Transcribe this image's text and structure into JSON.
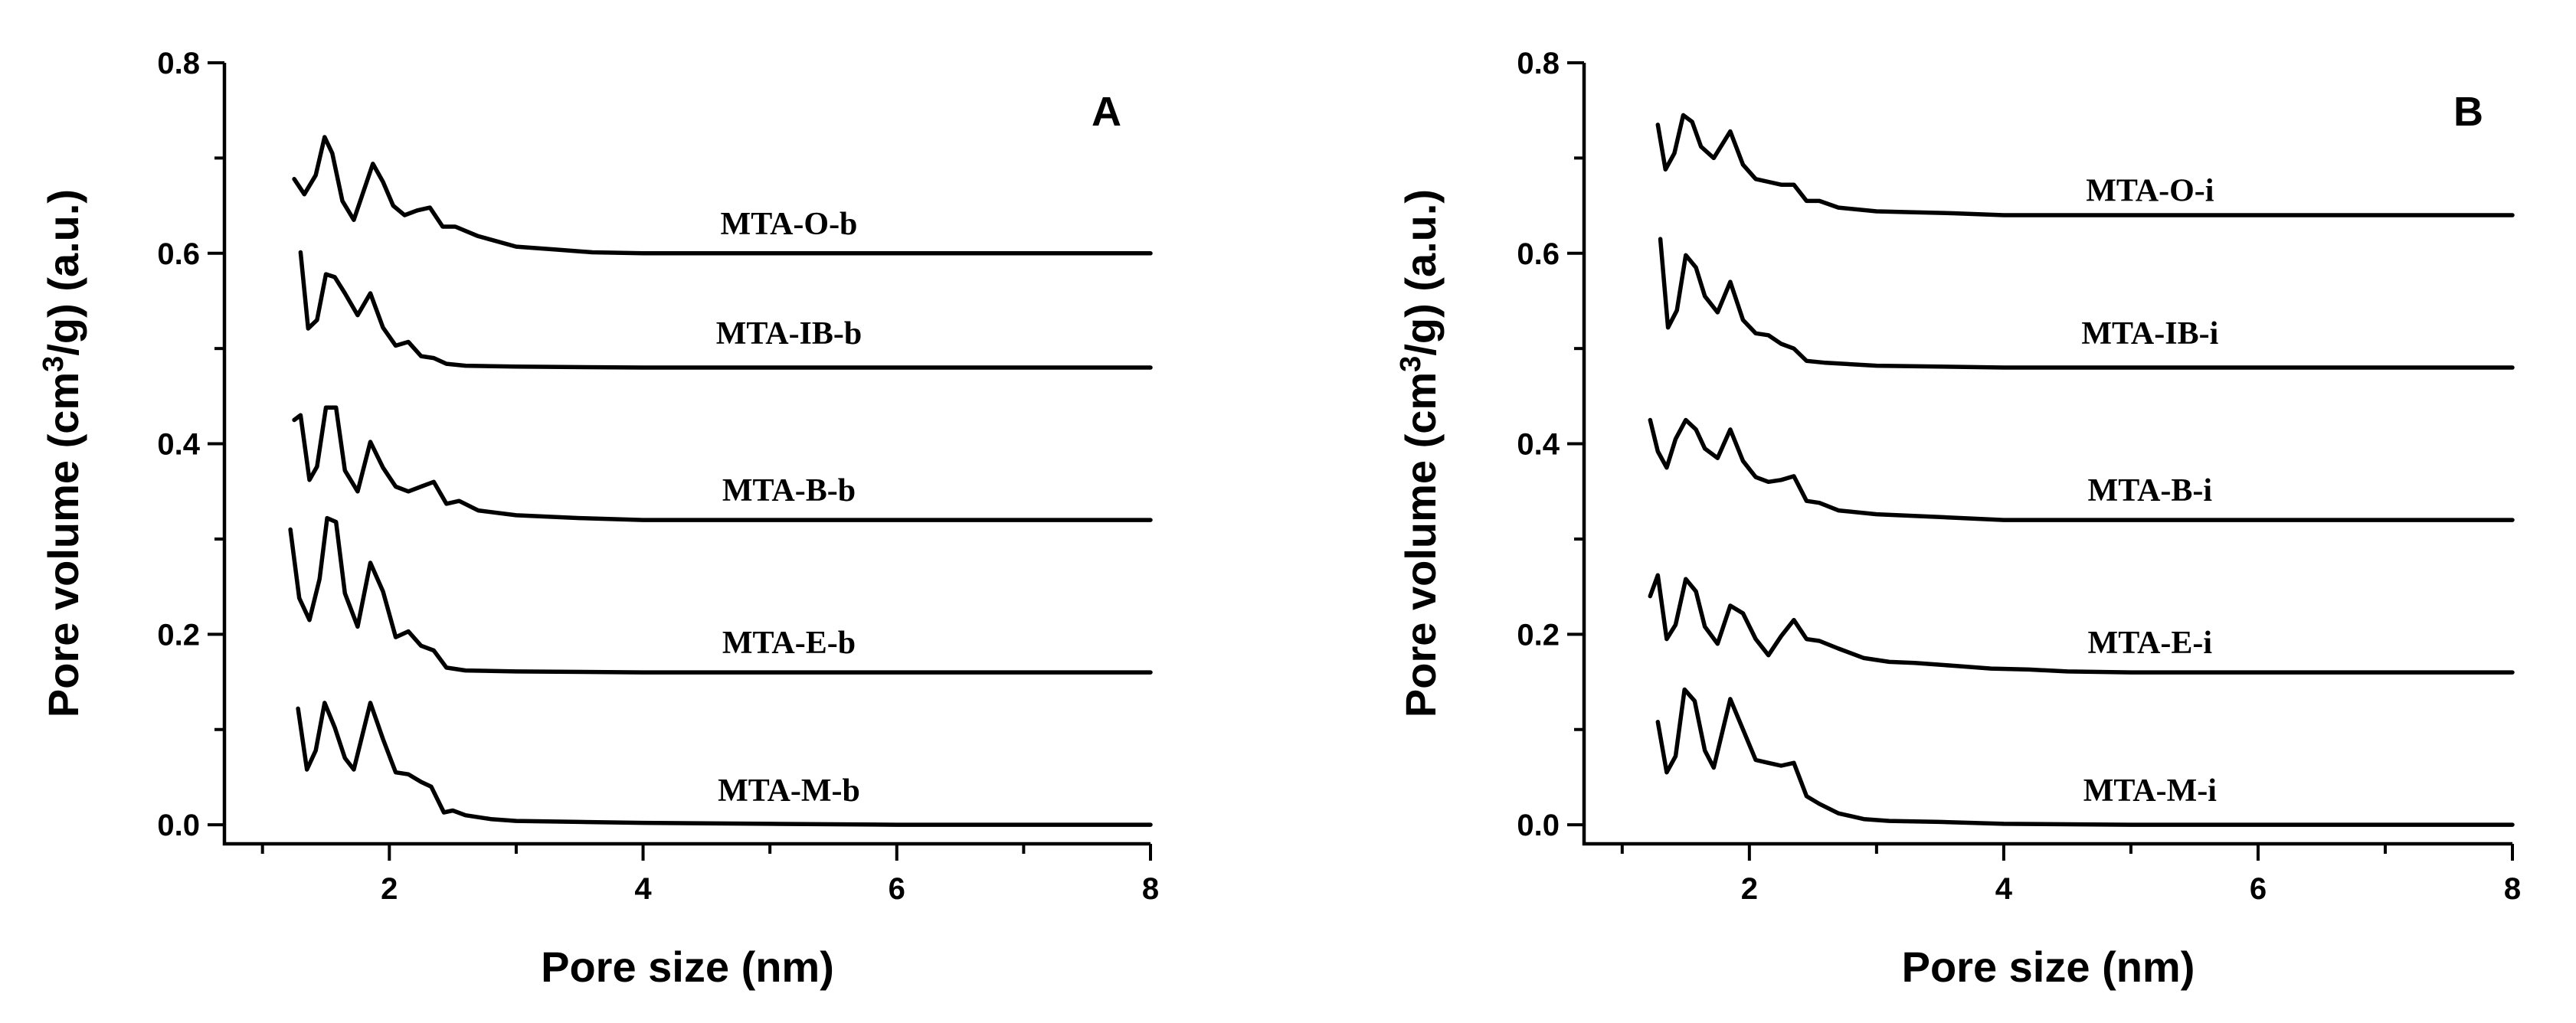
{
  "chart_data": [
    {
      "type": "line",
      "panel_label": "A",
      "xlabel": "Pore size (nm)",
      "ylabel": "Pore volume (cm³/g) (a.u.)",
      "ylabel_parts": {
        "pre": "Pore volume (cm",
        "sup": "3",
        "post": "/g) (a.u.)"
      },
      "xlim": [
        0.7,
        8
      ],
      "ylim": [
        -0.02,
        0.8
      ],
      "xticks": [
        2,
        4,
        6,
        8
      ],
      "xtick_labels": [
        "2",
        "4",
        "6",
        "8"
      ],
      "yticks": [
        0.0,
        0.2,
        0.4,
        0.6,
        0.8
      ],
      "ytick_labels": [
        "0.0",
        "0.2",
        "0.4",
        "0.6",
        "0.8"
      ],
      "grid": false,
      "legend": "none",
      "series": [
        {
          "name": "MTA-O-b",
          "label_at": {
            "x": 5.15,
            "y": 0.62
          },
          "x": [
            1.25,
            1.33,
            1.42,
            1.49,
            1.55,
            1.63,
            1.72,
            1.87,
            1.95,
            2.03,
            2.12,
            2.22,
            2.32,
            2.42,
            2.52,
            2.7,
            3.0,
            3.3,
            3.6,
            4.0,
            5.0,
            6.0,
            8.0
          ],
          "y": [
            0.678,
            0.662,
            0.682,
            0.722,
            0.705,
            0.655,
            0.635,
            0.694,
            0.675,
            0.65,
            0.64,
            0.645,
            0.648,
            0.628,
            0.628,
            0.618,
            0.607,
            0.604,
            0.601,
            0.6,
            0.6,
            0.6,
            0.6
          ]
        },
        {
          "name": "MTA-IB-b",
          "label_at": {
            "x": 5.15,
            "y": 0.505
          },
          "x": [
            1.3,
            1.36,
            1.43,
            1.5,
            1.57,
            1.65,
            1.75,
            1.85,
            1.95,
            2.05,
            2.15,
            2.25,
            2.35,
            2.45,
            2.6,
            3.0,
            4.0,
            5.0,
            6.0,
            8.0
          ],
          "y": [
            0.601,
            0.521,
            0.53,
            0.578,
            0.575,
            0.558,
            0.535,
            0.558,
            0.522,
            0.503,
            0.507,
            0.492,
            0.49,
            0.484,
            0.482,
            0.481,
            0.48,
            0.48,
            0.48,
            0.48
          ]
        },
        {
          "name": "MTA-B-b",
          "label_at": {
            "x": 5.15,
            "y": 0.34
          },
          "x": [
            1.25,
            1.3,
            1.37,
            1.43,
            1.5,
            1.58,
            1.65,
            1.75,
            1.85,
            1.95,
            2.05,
            2.15,
            2.25,
            2.35,
            2.45,
            2.55,
            2.7,
            3.0,
            3.5,
            4.0,
            5.0,
            6.0,
            8.0
          ],
          "y": [
            0.425,
            0.43,
            0.362,
            0.376,
            0.438,
            0.438,
            0.372,
            0.35,
            0.402,
            0.375,
            0.355,
            0.35,
            0.355,
            0.36,
            0.337,
            0.34,
            0.33,
            0.325,
            0.322,
            0.32,
            0.32,
            0.32,
            0.32
          ]
        },
        {
          "name": "MTA-E-b",
          "label_at": {
            "x": 5.15,
            "y": 0.18
          },
          "x": [
            1.22,
            1.29,
            1.37,
            1.45,
            1.51,
            1.58,
            1.65,
            1.75,
            1.85,
            1.95,
            2.05,
            2.15,
            2.25,
            2.35,
            2.45,
            2.6,
            3.0,
            4.0,
            5.0,
            6.0,
            8.0
          ],
          "y": [
            0.31,
            0.238,
            0.215,
            0.258,
            0.322,
            0.318,
            0.243,
            0.208,
            0.275,
            0.245,
            0.197,
            0.203,
            0.188,
            0.183,
            0.165,
            0.162,
            0.161,
            0.16,
            0.16,
            0.16,
            0.16
          ]
        },
        {
          "name": "MTA-M-b",
          "label_at": {
            "x": 5.15,
            "y": 0.025
          },
          "x": [
            1.28,
            1.35,
            1.42,
            1.49,
            1.57,
            1.65,
            1.72,
            1.85,
            1.95,
            2.05,
            2.15,
            2.25,
            2.33,
            2.43,
            2.5,
            2.6,
            2.8,
            3.0,
            3.5,
            4.0,
            5.0,
            6.0,
            8.0
          ],
          "y": [
            0.122,
            0.058,
            0.078,
            0.128,
            0.102,
            0.07,
            0.058,
            0.128,
            0.09,
            0.055,
            0.053,
            0.045,
            0.04,
            0.013,
            0.015,
            0.01,
            0.006,
            0.004,
            0.003,
            0.002,
            0.001,
            0.0,
            0.0
          ]
        }
      ]
    },
    {
      "type": "line",
      "panel_label": "B",
      "xlabel": "Pore size (nm)",
      "ylabel": "Pore volume (cm³/g) (a.u.)",
      "ylabel_parts": {
        "pre": "Pore volume (cm",
        "sup": "3",
        "post": "/g) (a.u.)"
      },
      "xlim": [
        0.7,
        8
      ],
      "ylim": [
        -0.02,
        0.8
      ],
      "xticks": [
        2,
        4,
        6,
        8
      ],
      "xtick_labels": [
        "2",
        "4",
        "6",
        "8"
      ],
      "yticks": [
        0.0,
        0.2,
        0.4,
        0.6,
        0.8
      ],
      "ytick_labels": [
        "0.0",
        "0.2",
        "0.4",
        "0.6",
        "0.8"
      ],
      "grid": false,
      "legend": "none",
      "series": [
        {
          "name": "MTA-O-i",
          "label_at": {
            "x": 5.15,
            "y": 0.655
          },
          "x": [
            1.28,
            1.34,
            1.41,
            1.48,
            1.55,
            1.62,
            1.72,
            1.85,
            1.95,
            2.05,
            2.15,
            2.25,
            2.35,
            2.45,
            2.55,
            2.7,
            3.0,
            3.3,
            3.6,
            4.0,
            5.0,
            6.0,
            8.0
          ],
          "y": [
            0.735,
            0.688,
            0.705,
            0.745,
            0.738,
            0.712,
            0.7,
            0.728,
            0.693,
            0.678,
            0.675,
            0.672,
            0.672,
            0.655,
            0.655,
            0.648,
            0.644,
            0.643,
            0.642,
            0.64,
            0.64,
            0.64,
            0.64
          ]
        },
        {
          "name": "MTA-IB-i",
          "label_at": {
            "x": 5.15,
            "y": 0.505
          },
          "x": [
            1.3,
            1.36,
            1.43,
            1.5,
            1.58,
            1.65,
            1.75,
            1.85,
            1.95,
            2.05,
            2.15,
            2.25,
            2.35,
            2.45,
            2.6,
            3.0,
            4.0,
            5.0,
            6.0,
            8.0
          ],
          "y": [
            0.615,
            0.522,
            0.54,
            0.598,
            0.585,
            0.555,
            0.538,
            0.57,
            0.53,
            0.516,
            0.514,
            0.505,
            0.5,
            0.487,
            0.485,
            0.482,
            0.48,
            0.48,
            0.48,
            0.48
          ]
        },
        {
          "name": "MTA-B-i",
          "label_at": {
            "x": 5.15,
            "y": 0.34
          },
          "x": [
            1.22,
            1.28,
            1.35,
            1.42,
            1.5,
            1.58,
            1.65,
            1.75,
            1.85,
            1.95,
            2.05,
            2.15,
            2.25,
            2.35,
            2.45,
            2.55,
            2.7,
            3.0,
            3.5,
            4.0,
            5.0,
            6.0,
            8.0
          ],
          "y": [
            0.425,
            0.392,
            0.375,
            0.405,
            0.425,
            0.415,
            0.395,
            0.385,
            0.415,
            0.382,
            0.365,
            0.36,
            0.362,
            0.366,
            0.34,
            0.338,
            0.33,
            0.326,
            0.323,
            0.32,
            0.32,
            0.32,
            0.32
          ]
        },
        {
          "name": "MTA-E-i",
          "label_at": {
            "x": 5.15,
            "y": 0.18
          },
          "x": [
            1.22,
            1.28,
            1.35,
            1.42,
            1.5,
            1.58,
            1.65,
            1.75,
            1.85,
            1.95,
            2.05,
            2.15,
            2.25,
            2.35,
            2.45,
            2.55,
            2.7,
            2.9,
            3.1,
            3.3,
            3.6,
            3.9,
            4.2,
            4.5,
            5.0,
            6.0,
            8.0
          ],
          "y": [
            0.24,
            0.262,
            0.195,
            0.21,
            0.258,
            0.245,
            0.208,
            0.19,
            0.23,
            0.222,
            0.195,
            0.178,
            0.198,
            0.215,
            0.195,
            0.193,
            0.185,
            0.175,
            0.171,
            0.17,
            0.167,
            0.164,
            0.163,
            0.161,
            0.16,
            0.16,
            0.16
          ]
        },
        {
          "name": "MTA-M-i",
          "label_at": {
            "x": 5.15,
            "y": 0.025
          },
          "x": [
            1.28,
            1.35,
            1.42,
            1.49,
            1.57,
            1.65,
            1.72,
            1.85,
            1.95,
            2.05,
            2.15,
            2.25,
            2.35,
            2.45,
            2.55,
            2.7,
            2.9,
            3.1,
            3.5,
            4.0,
            5.0,
            6.0,
            8.0
          ],
          "y": [
            0.108,
            0.055,
            0.072,
            0.142,
            0.13,
            0.078,
            0.06,
            0.132,
            0.1,
            0.068,
            0.065,
            0.062,
            0.065,
            0.03,
            0.022,
            0.012,
            0.006,
            0.004,
            0.003,
            0.001,
            0.0,
            0.0,
            0.0
          ]
        }
      ]
    }
  ]
}
